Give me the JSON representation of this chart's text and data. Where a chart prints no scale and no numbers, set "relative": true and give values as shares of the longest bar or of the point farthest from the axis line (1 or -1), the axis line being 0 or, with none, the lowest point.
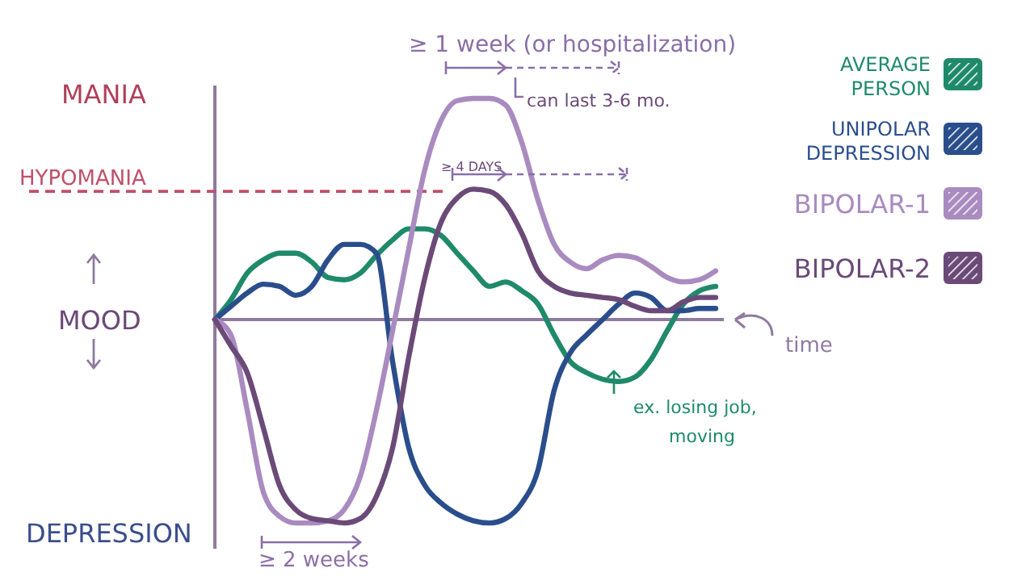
{
  "chart_data": {
    "type": "line",
    "relative": true,
    "xlabel": "time",
    "legend": "right",
    "line_style": "solid",
    "marker": "none",
    "grid": false,
    "categories": [
      null,
      null,
      null,
      null,
      null,
      null,
      null,
      null,
      null,
      null,
      null,
      null,
      null,
      null,
      null,
      null,
      null,
      null,
      null,
      null,
      null,
      null,
      null,
      null,
      null,
      null,
      null,
      null,
      null,
      null,
      null,
      null
    ],
    "series": [
      {
        "name": "AVERAGE PERSON",
        "color": "#1f8a6a",
        "values": [
          0,
          0.09,
          0.21,
          0.27,
          0.3,
          0.3,
          0.26,
          0.19,
          0.18,
          0.21,
          0.29,
          0.36,
          0.41,
          0.41,
          0.38,
          0.3,
          0.22,
          0.15,
          0.17,
          0.13,
          0.07,
          -0.07,
          -0.19,
          -0.24,
          -0.27,
          -0.28,
          -0.26,
          -0.18,
          -0.05,
          0.07,
          0.13,
          0.15
        ]
      },
      {
        "name": "UNIPOLAR DEPRESSION",
        "color": "#2a4e8c",
        "values": [
          0,
          0.06,
          0.12,
          0.16,
          0.15,
          0.11,
          0.15,
          0.27,
          0.34,
          0.34,
          0.3,
          -0.19,
          -0.58,
          -0.75,
          -0.83,
          -0.88,
          -0.91,
          -0.92,
          -0.9,
          -0.83,
          -0.68,
          -0.32,
          -0.15,
          -0.07,
          0,
          0.07,
          0.12,
          0.1,
          0.04,
          0.04,
          0.05,
          0.05
        ]
      },
      {
        "name": "BIPOLAR-1",
        "color": "#a98bc0",
        "values": [
          0,
          -0.07,
          -0.41,
          -0.78,
          -0.89,
          -0.92,
          -0.92,
          -0.91,
          -0.86,
          -0.71,
          -0.41,
          -0.05,
          0.32,
          0.68,
          0.9,
          0.99,
          1,
          1,
          0.97,
          0.8,
          0.54,
          0.34,
          0.26,
          0.23,
          0.27,
          0.29,
          0.28,
          0.24,
          0.19,
          0.17,
          0.18,
          0.22
        ]
      },
      {
        "name": "BIPOLAR-2",
        "color": "#6b4a78",
        "values": [
          0,
          -0.12,
          -0.24,
          -0.49,
          -0.75,
          -0.86,
          -0.9,
          -0.91,
          -0.92,
          -0.9,
          -0.8,
          -0.58,
          -0.17,
          0.19,
          0.44,
          0.55,
          0.59,
          0.58,
          0.52,
          0.39,
          0.22,
          0.15,
          0.12,
          0.11,
          0.1,
          0.09,
          0.06,
          0.04,
          0.04,
          0.08,
          0.1,
          0.1
        ]
      }
    ],
    "ref_lines": [
      {
        "axis": "y",
        "value": 0.58,
        "label": "HYPOMANIA",
        "color": "#c0506a",
        "line_style": "dashed"
      }
    ],
    "annotations": [
      "MANIA",
      "MOOD",
      "DEPRESSION",
      "≥ 1 week (or hospitalization)",
      "can last 3-6 mo.",
      "≥ 4 DAYS",
      "ex. losing job, moving",
      "≥ 2 weeks"
    ]
  }
}
